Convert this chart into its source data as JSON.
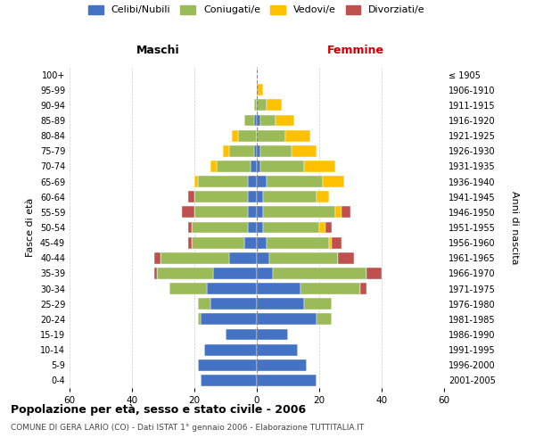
{
  "age_groups": [
    "0-4",
    "5-9",
    "10-14",
    "15-19",
    "20-24",
    "25-29",
    "30-34",
    "35-39",
    "40-44",
    "45-49",
    "50-54",
    "55-59",
    "60-64",
    "65-69",
    "70-74",
    "75-79",
    "80-84",
    "85-89",
    "90-94",
    "95-99",
    "100+"
  ],
  "birth_years": [
    "2001-2005",
    "1996-2000",
    "1991-1995",
    "1986-1990",
    "1981-1985",
    "1976-1980",
    "1971-1975",
    "1966-1970",
    "1961-1965",
    "1956-1960",
    "1951-1955",
    "1946-1950",
    "1941-1945",
    "1936-1940",
    "1931-1935",
    "1926-1930",
    "1921-1925",
    "1916-1920",
    "1911-1915",
    "1906-1910",
    "≤ 1905"
  ],
  "colors": {
    "celibi": "#4472C4",
    "coniugati": "#9BBB59",
    "vedovi": "#FFC000",
    "divorziati": "#C0504D"
  },
  "maschi": {
    "celibi": [
      18,
      19,
      17,
      10,
      18,
      15,
      16,
      14,
      9,
      4,
      3,
      3,
      3,
      3,
      2,
      1,
      0,
      1,
      0,
      0,
      0
    ],
    "coniugati": [
      0,
      0,
      0,
      0,
      1,
      4,
      12,
      18,
      22,
      17,
      18,
      17,
      17,
      16,
      11,
      8,
      6,
      3,
      1,
      0,
      0
    ],
    "vedovi": [
      0,
      0,
      0,
      0,
      0,
      0,
      0,
      0,
      0,
      0,
      0,
      0,
      0,
      1,
      2,
      2,
      2,
      0,
      0,
      0,
      0
    ],
    "divorziati": [
      0,
      0,
      0,
      0,
      0,
      0,
      0,
      1,
      2,
      1,
      1,
      4,
      2,
      0,
      0,
      0,
      0,
      0,
      0,
      0,
      0
    ]
  },
  "femmine": {
    "celibi": [
      19,
      16,
      13,
      10,
      19,
      15,
      14,
      5,
      4,
      3,
      2,
      2,
      2,
      3,
      1,
      1,
      0,
      1,
      0,
      0,
      0
    ],
    "coniugati": [
      0,
      0,
      0,
      0,
      5,
      9,
      19,
      30,
      22,
      20,
      18,
      23,
      17,
      18,
      14,
      10,
      9,
      5,
      3,
      0,
      0
    ],
    "vedovi": [
      0,
      0,
      0,
      0,
      0,
      0,
      0,
      0,
      0,
      1,
      2,
      2,
      4,
      7,
      10,
      8,
      8,
      6,
      5,
      2,
      0
    ],
    "divorziati": [
      0,
      0,
      0,
      0,
      0,
      0,
      2,
      5,
      5,
      3,
      2,
      3,
      0,
      0,
      0,
      0,
      0,
      0,
      0,
      0,
      0
    ]
  },
  "xlim": 60,
  "title": "Popolazione per età, sesso e stato civile - 2006",
  "subtitle": "COMUNE DI GERA LARIO (CO) - Dati ISTAT 1° gennaio 2006 - Elaborazione TUTTITALIA.IT",
  "ylabel_left": "Fasce di età",
  "ylabel_right": "Anni di nascita",
  "xlabel_maschi": "Maschi",
  "xlabel_femmine": "Femmine",
  "legend_labels": [
    "Celibi/Nubili",
    "Coniugati/e",
    "Vedovi/e",
    "Divorziati/e"
  ],
  "bg_color": "#FFFFFF",
  "grid_color": "#CCCCCC",
  "maschi_color": "#000000",
  "femmine_color": "#CC0000"
}
